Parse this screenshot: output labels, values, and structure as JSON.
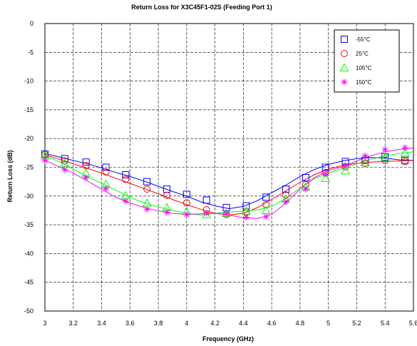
{
  "chart_data": {
    "type": "line",
    "title": "Return Loss for X3C45F1-02S (Feeding Port 1)",
    "xlabel": "Frequency (GHz)",
    "ylabel": "Return Loss (dB)",
    "xlim": [
      3,
      5.6
    ],
    "ylim": [
      -50,
      0
    ],
    "xticks": [
      "3",
      "3.2",
      "3.4",
      "3.6",
      "3.8",
      "4",
      "4.2",
      "4.4",
      "4.6",
      "4.8",
      "5",
      "5.2",
      "5.4",
      "5.6"
    ],
    "yticks": [
      "0",
      "-5",
      "-10",
      "-15",
      "-20",
      "-25",
      "-30",
      "-35",
      "-40",
      "-45",
      "-50"
    ],
    "grid": "dashed",
    "legend_position": "top-right",
    "series": [
      {
        "name": "-55°C",
        "color": "#0000ff",
        "marker": "square",
        "x": [
          3.0,
          3.1,
          3.2,
          3.3,
          3.4,
          3.5,
          3.6,
          3.7,
          3.8,
          3.9,
          4.0,
          4.1,
          4.2,
          4.3,
          4.4,
          4.5,
          4.6,
          4.7,
          4.8,
          4.9,
          5.0,
          5.1,
          5.2,
          5.3,
          5.4,
          5.5,
          5.6
        ],
        "y": [
          -22.6,
          -23.2,
          -23.8,
          -24.4,
          -25.1,
          -25.9,
          -26.6,
          -27.4,
          -28.3,
          -29.2,
          -30.0,
          -31.0,
          -31.7,
          -32.2,
          -31.8,
          -30.8,
          -29.4,
          -28.1,
          -26.6,
          -25.4,
          -24.5,
          -23.9,
          -23.5,
          -23.3,
          -23.4,
          -23.7,
          -23.8
        ],
        "marker_x": [
          3.0,
          3.14,
          3.29,
          3.43,
          3.57,
          3.72,
          3.86,
          4.0,
          4.14,
          4.28,
          4.42,
          4.56,
          4.7,
          4.84,
          4.98,
          5.12,
          5.26,
          5.4,
          5.54
        ],
        "marker_y": [
          -22.7,
          -23.5,
          -24.1,
          -25.0,
          -26.3,
          -27.5,
          -28.8,
          -29.7,
          -30.7,
          -32.0,
          -31.7,
          -30.2,
          -28.8,
          -26.8,
          -25.0,
          -24.0,
          -23.8,
          -23.2,
          -23.8
        ]
      },
      {
        "name": "25°C",
        "color": "#ff0000",
        "marker": "circle",
        "x": [
          3.0,
          3.1,
          3.2,
          3.3,
          3.4,
          3.5,
          3.6,
          3.7,
          3.8,
          3.9,
          4.0,
          4.1,
          4.2,
          4.3,
          4.4,
          4.5,
          4.6,
          4.7,
          4.8,
          4.9,
          5.0,
          5.1,
          5.2,
          5.3,
          5.4,
          5.5,
          5.6
        ],
        "y": [
          -22.8,
          -23.6,
          -24.4,
          -25.2,
          -26.0,
          -26.9,
          -27.8,
          -28.7,
          -29.6,
          -30.6,
          -31.5,
          -32.3,
          -33.0,
          -33.3,
          -33.0,
          -32.0,
          -30.6,
          -29.1,
          -27.6,
          -26.3,
          -25.3,
          -24.7,
          -24.3,
          -24.1,
          -24.0,
          -23.9,
          -23.8
        ],
        "marker_x": [
          3.0,
          3.14,
          3.29,
          3.43,
          3.57,
          3.72,
          3.86,
          4.0,
          4.14,
          4.28,
          4.42,
          4.56,
          4.7,
          4.84,
          4.98,
          5.12,
          5.26,
          5.4,
          5.54
        ],
        "marker_y": [
          -22.8,
          -23.9,
          -24.7,
          -25.8,
          -27.1,
          -28.8,
          -29.9,
          -31.2,
          -32.4,
          -33.2,
          -32.8,
          -31.5,
          -29.8,
          -28.0,
          -25.9,
          -24.9,
          -24.3,
          -23.8,
          -24.0
        ]
      },
      {
        "name": "105°C",
        "color": "#00ff00",
        "marker": "triangle",
        "x": [
          3.0,
          3.1,
          3.2,
          3.3,
          3.4,
          3.5,
          3.6,
          3.7,
          3.8,
          3.9,
          4.0,
          4.1,
          4.2,
          4.3,
          4.4,
          4.5,
          4.6,
          4.7,
          4.8,
          4.9,
          5.0,
          5.1,
          5.2,
          5.3,
          5.4,
          5.5,
          5.6
        ],
        "y": [
          -23.0,
          -24.0,
          -25.3,
          -26.6,
          -27.8,
          -29.0,
          -30.2,
          -31.2,
          -31.9,
          -32.5,
          -33.0,
          -33.3,
          -33.0,
          -32.8,
          -32.6,
          -32.4,
          -31.8,
          -30.4,
          -28.6,
          -27.0,
          -26.0,
          -25.2,
          -24.4,
          -23.6,
          -23.0,
          -22.6,
          -22.3
        ],
        "marker_x": [
          3.0,
          3.14,
          3.29,
          3.43,
          3.57,
          3.72,
          3.86,
          4.0,
          4.14,
          4.28,
          4.42,
          4.56,
          4.7,
          4.84,
          4.98,
          5.12,
          5.26,
          5.4,
          5.54
        ],
        "marker_y": [
          -23.0,
          -24.3,
          -26.0,
          -27.9,
          -29.9,
          -31.2,
          -32.0,
          -32.7,
          -33.2,
          -33.0,
          -32.6,
          -32.5,
          -30.5,
          -28.4,
          -26.9,
          -25.6,
          -24.2,
          -23.3,
          -22.5
        ]
      },
      {
        "name": "150°C",
        "color": "#ff00ff",
        "marker": "asterisk",
        "x": [
          3.0,
          3.1,
          3.2,
          3.3,
          3.4,
          3.5,
          3.6,
          3.7,
          3.8,
          3.9,
          4.0,
          4.1,
          4.2,
          4.3,
          4.4,
          4.5,
          4.6,
          4.7,
          4.8,
          4.9,
          5.0,
          5.1,
          5.2,
          5.3,
          5.4,
          5.5,
          5.6
        ],
        "y": [
          -23.8,
          -24.9,
          -26.0,
          -27.4,
          -28.8,
          -30.2,
          -31.2,
          -32.0,
          -32.6,
          -33.0,
          -33.2,
          -33.1,
          -33.0,
          -33.3,
          -33.8,
          -33.9,
          -33.2,
          -31.2,
          -28.8,
          -26.8,
          -25.6,
          -24.9,
          -23.9,
          -23.0,
          -22.3,
          -21.9,
          -21.6
        ],
        "marker_x": [
          3.0,
          3.14,
          3.29,
          3.43,
          3.57,
          3.72,
          3.86,
          4.0,
          4.14,
          4.28,
          4.42,
          4.56,
          4.7,
          4.84,
          4.98,
          5.12,
          5.26,
          5.4,
          5.54
        ],
        "marker_y": [
          -23.8,
          -25.4,
          -26.8,
          -28.7,
          -30.9,
          -32.3,
          -32.8,
          -33.2,
          -33.0,
          -33.1,
          -33.7,
          -33.6,
          -31.0,
          -28.8,
          -26.2,
          -24.7,
          -23.0,
          -21.9,
          -21.6
        ]
      }
    ]
  }
}
